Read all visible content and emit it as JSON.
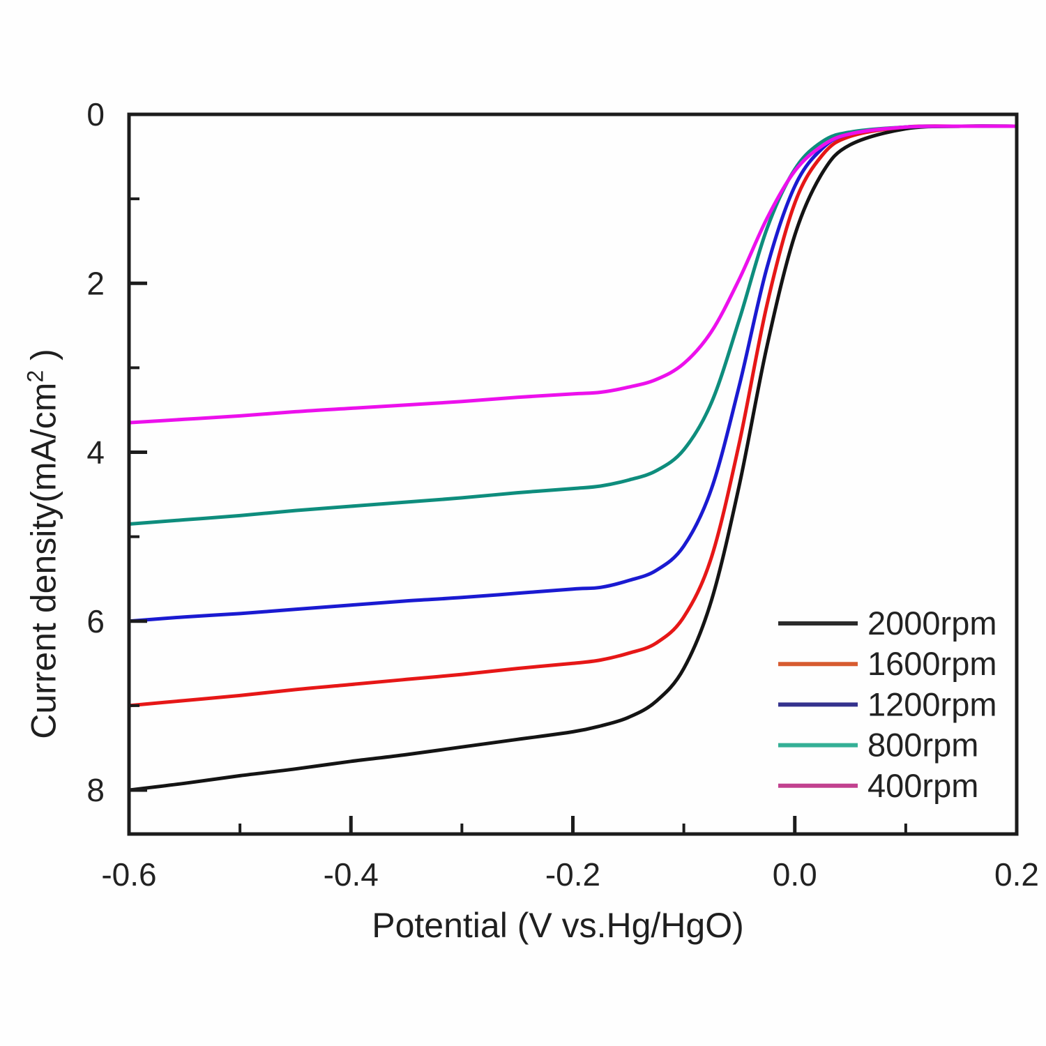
{
  "figure": {
    "background": "#fefefe",
    "axis_color": "#1c1c1c",
    "text_color": "#222222"
  },
  "axes": {
    "x": {
      "label": "Potential (V vs.Hg/HgO)",
      "range": [
        -0.6,
        0.2
      ],
      "major_ticks": [
        -0.6,
        -0.4,
        -0.2,
        0.0,
        0.2
      ],
      "major_tick_labels": [
        "-0.6",
        "-0.4",
        "-0.2",
        "0.0",
        "0.2"
      ],
      "minor_ticks": [
        -0.5,
        -0.3,
        -0.1,
        0.1
      ]
    },
    "y": {
      "label_main": "Current density(mA/cm",
      "label_sup": "2",
      "label_suffix": " )",
      "range": [
        0,
        8.52
      ],
      "inverted": true,
      "major_ticks": [
        0,
        2,
        4,
        6,
        8
      ],
      "major_tick_labels": [
        "0",
        "2",
        "4",
        "6",
        "8"
      ],
      "minor_ticks": [
        1,
        3,
        5,
        7
      ]
    }
  },
  "legend": {
    "items": [
      {
        "label": "2000rpm",
        "color": "#2b2b2b"
      },
      {
        "label": "1600rpm",
        "color": "#d75b30"
      },
      {
        "label": "1200rpm",
        "color": "#34328e"
      },
      {
        "label": "800rpm",
        "color": "#34b096"
      },
      {
        "label": "400rpm",
        "color": "#c2418f"
      }
    ]
  },
  "chart_data": {
    "type": "line",
    "title": "",
    "xlabel": "Potential (V vs.Hg/HgO)",
    "ylabel": "Current density(mA/cm2)",
    "xlim": [
      -0.6,
      0.2
    ],
    "ylim": [
      0,
      8.52
    ],
    "y_axis_inverted": true,
    "grid": false,
    "legend_position": "inside lower right",
    "x": [
      -0.6,
      -0.55,
      -0.5,
      -0.45,
      -0.4,
      -0.35,
      -0.3,
      -0.25,
      -0.2,
      -0.175,
      -0.15,
      -0.125,
      -0.1,
      -0.075,
      -0.05,
      -0.025,
      0.0,
      0.025,
      0.05,
      0.1,
      0.15,
      0.2
    ],
    "series": [
      {
        "name": "2000rpm",
        "color": "#141414",
        "values": [
          8.0,
          7.92,
          7.83,
          7.75,
          7.66,
          7.58,
          7.49,
          7.4,
          7.31,
          7.24,
          7.14,
          6.95,
          6.56,
          5.75,
          4.39,
          2.74,
          1.43,
          0.69,
          0.36,
          0.17,
          0.14,
          0.14
        ]
      },
      {
        "name": "1600rpm",
        "color": "#e61717",
        "values": [
          7.0,
          6.94,
          6.88,
          6.81,
          6.75,
          6.69,
          6.63,
          6.56,
          6.5,
          6.46,
          6.38,
          6.26,
          5.95,
          5.24,
          3.89,
          2.25,
          1.05,
          0.48,
          0.26,
          0.15,
          0.14,
          0.14
        ]
      },
      {
        "name": "1200rpm",
        "color": "#1a1ad1",
        "values": [
          6.0,
          5.95,
          5.91,
          5.86,
          5.81,
          5.76,
          5.72,
          5.67,
          5.62,
          5.6,
          5.52,
          5.4,
          5.11,
          4.43,
          3.21,
          1.81,
          0.85,
          0.4,
          0.23,
          0.15,
          0.14,
          0.14
        ]
      },
      {
        "name": "800rpm",
        "color": "#0e8d7d",
        "values": [
          4.85,
          4.8,
          4.75,
          4.69,
          4.64,
          4.59,
          4.54,
          4.48,
          4.43,
          4.4,
          4.33,
          4.22,
          3.97,
          3.41,
          2.43,
          1.35,
          0.65,
          0.32,
          0.21,
          0.15,
          0.14,
          0.14
        ]
      },
      {
        "name": "400rpm",
        "color": "#ec10ec",
        "values": [
          3.65,
          3.61,
          3.57,
          3.52,
          3.48,
          3.44,
          3.4,
          3.35,
          3.31,
          3.29,
          3.23,
          3.14,
          2.95,
          2.57,
          1.95,
          1.23,
          0.67,
          0.37,
          0.23,
          0.15,
          0.14,
          0.14
        ]
      }
    ]
  }
}
